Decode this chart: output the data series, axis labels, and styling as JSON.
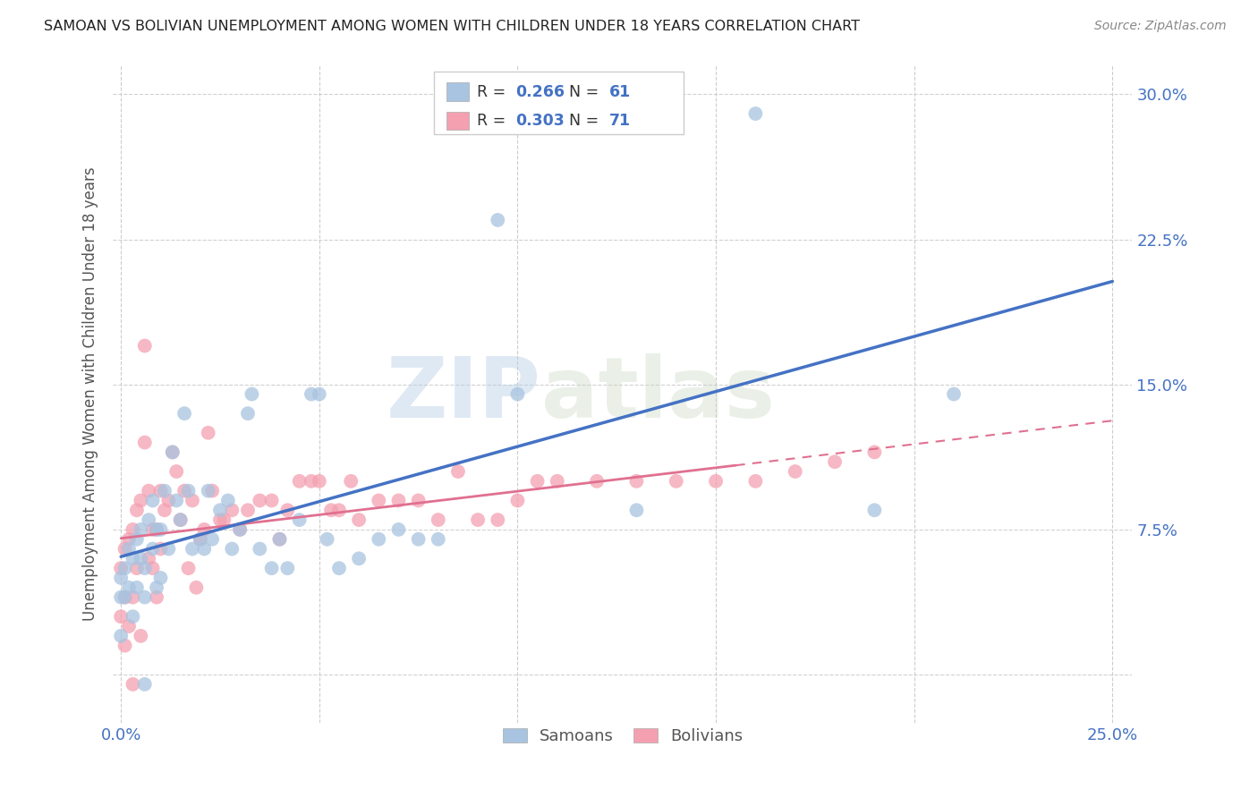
{
  "title": "SAMOAN VS BOLIVIAN UNEMPLOYMENT AMONG WOMEN WITH CHILDREN UNDER 18 YEARS CORRELATION CHART",
  "source": "Source: ZipAtlas.com",
  "ylabel": "Unemployment Among Women with Children Under 18 years",
  "xlabel_samoans": "Samoans",
  "xlabel_bolivians": "Bolivians",
  "xlim": [
    -0.002,
    0.255
  ],
  "ylim": [
    -0.025,
    0.315
  ],
  "xticks": [
    0.0,
    0.05,
    0.1,
    0.15,
    0.2,
    0.25
  ],
  "xticklabels": [
    "0.0%",
    "",
    "",
    "",
    "",
    "25.0%"
  ],
  "yticks": [
    0.0,
    0.075,
    0.15,
    0.225,
    0.3
  ],
  "yticklabels_right": [
    "",
    "7.5%",
    "15.0%",
    "22.5%",
    "30.0%"
  ],
  "samoan_R": "0.266",
  "samoan_N": "61",
  "bolivian_R": "0.303",
  "bolivian_N": "71",
  "samoan_color": "#a8c4e0",
  "bolivian_color": "#f4a0b0",
  "samoan_line_color": "#4472c4",
  "bolivian_line_color": "#e07090",
  "watermark_zip": "ZIP",
  "watermark_atlas": "atlas",
  "samoan_x": [
    0.0,
    0.0,
    0.0,
    0.001,
    0.001,
    0.002,
    0.002,
    0.003,
    0.003,
    0.004,
    0.004,
    0.005,
    0.005,
    0.006,
    0.006,
    0.006,
    0.007,
    0.008,
    0.008,
    0.009,
    0.009,
    0.01,
    0.01,
    0.011,
    0.012,
    0.013,
    0.014,
    0.015,
    0.016,
    0.017,
    0.018,
    0.02,
    0.021,
    0.022,
    0.023,
    0.025,
    0.027,
    0.028,
    0.03,
    0.032,
    0.033,
    0.035,
    0.038,
    0.04,
    0.042,
    0.045,
    0.048,
    0.05,
    0.052,
    0.055,
    0.06,
    0.065,
    0.07,
    0.075,
    0.08,
    0.095,
    0.1,
    0.13,
    0.16,
    0.19,
    0.21
  ],
  "samoan_y": [
    0.05,
    0.04,
    0.02,
    0.055,
    0.04,
    0.065,
    0.045,
    0.06,
    0.03,
    0.07,
    0.045,
    0.075,
    0.06,
    0.055,
    0.04,
    -0.005,
    0.08,
    0.09,
    0.065,
    0.075,
    0.045,
    0.075,
    0.05,
    0.095,
    0.065,
    0.115,
    0.09,
    0.08,
    0.135,
    0.095,
    0.065,
    0.07,
    0.065,
    0.095,
    0.07,
    0.085,
    0.09,
    0.065,
    0.075,
    0.135,
    0.145,
    0.065,
    0.055,
    0.07,
    0.055,
    0.08,
    0.145,
    0.145,
    0.07,
    0.055,
    0.06,
    0.07,
    0.075,
    0.07,
    0.07,
    0.235,
    0.145,
    0.085,
    0.29,
    0.085,
    0.145
  ],
  "bolivian_x": [
    0.0,
    0.0,
    0.001,
    0.001,
    0.001,
    0.002,
    0.002,
    0.003,
    0.003,
    0.003,
    0.004,
    0.004,
    0.005,
    0.005,
    0.006,
    0.006,
    0.007,
    0.007,
    0.008,
    0.008,
    0.009,
    0.009,
    0.01,
    0.01,
    0.011,
    0.012,
    0.013,
    0.014,
    0.015,
    0.016,
    0.017,
    0.018,
    0.019,
    0.02,
    0.021,
    0.022,
    0.023,
    0.025,
    0.026,
    0.028,
    0.03,
    0.032,
    0.035,
    0.038,
    0.04,
    0.042,
    0.045,
    0.048,
    0.05,
    0.053,
    0.055,
    0.058,
    0.06,
    0.065,
    0.07,
    0.075,
    0.08,
    0.085,
    0.09,
    0.095,
    0.1,
    0.105,
    0.11,
    0.12,
    0.13,
    0.14,
    0.15,
    0.16,
    0.17,
    0.18,
    0.19
  ],
  "bolivian_y": [
    0.055,
    0.03,
    0.065,
    0.04,
    0.015,
    0.07,
    0.025,
    0.075,
    0.04,
    -0.005,
    0.085,
    0.055,
    0.09,
    0.02,
    0.17,
    0.12,
    0.095,
    0.06,
    0.055,
    0.075,
    0.075,
    0.04,
    0.095,
    0.065,
    0.085,
    0.09,
    0.115,
    0.105,
    0.08,
    0.095,
    0.055,
    0.09,
    0.045,
    0.07,
    0.075,
    0.125,
    0.095,
    0.08,
    0.08,
    0.085,
    0.075,
    0.085,
    0.09,
    0.09,
    0.07,
    0.085,
    0.1,
    0.1,
    0.1,
    0.085,
    0.085,
    0.1,
    0.08,
    0.09,
    0.09,
    0.09,
    0.08,
    0.105,
    0.08,
    0.08,
    0.09,
    0.1,
    0.1,
    0.1,
    0.1,
    0.1,
    0.1,
    0.1,
    0.105,
    0.11,
    0.115
  ]
}
